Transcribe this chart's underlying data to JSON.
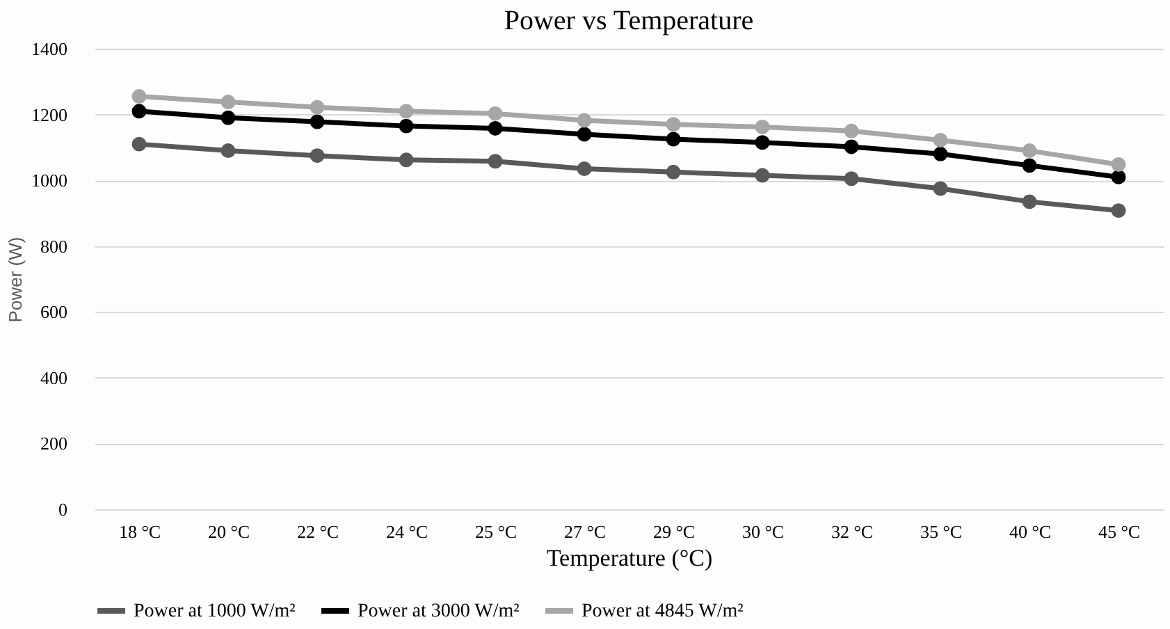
{
  "chart_data": {
    "type": "line",
    "title": "Power vs Temperature",
    "xlabel": "Temperature (°C)",
    "ylabel": "Power (W)",
    "categories": [
      "18 °C",
      "20 °C",
      "22 °C",
      "24 °C",
      "25 °C",
      "27 °C",
      "29 °C",
      "30 °C",
      "32 °C",
      "35 °C",
      "40 °C",
      "45 °C"
    ],
    "series": [
      {
        "name": "Power at 1000 W/m²",
        "color": "#595959",
        "values": [
          1110,
          1090,
          1075,
          1062,
          1058,
          1035,
          1025,
          1015,
          1005,
          975,
          935,
          908
        ]
      },
      {
        "name": "Power at 3000 W/m²",
        "color": "#000000",
        "values": [
          1210,
          1190,
          1178,
          1165,
          1158,
          1140,
          1125,
          1115,
          1102,
          1080,
          1045,
          1010
        ]
      },
      {
        "name": "Power at 4845 W/m²",
        "color": "#a6a6a6",
        "values": [
          1255,
          1238,
          1222,
          1210,
          1203,
          1182,
          1170,
          1162,
          1150,
          1122,
          1090,
          1048
        ]
      }
    ],
    "ylim": [
      0,
      1400
    ],
    "yticks": [
      0,
      200,
      400,
      600,
      800,
      1000,
      1200,
      1400
    ],
    "grid": "y",
    "legend": "bottom",
    "marker": "circle",
    "line_style": "solid"
  }
}
